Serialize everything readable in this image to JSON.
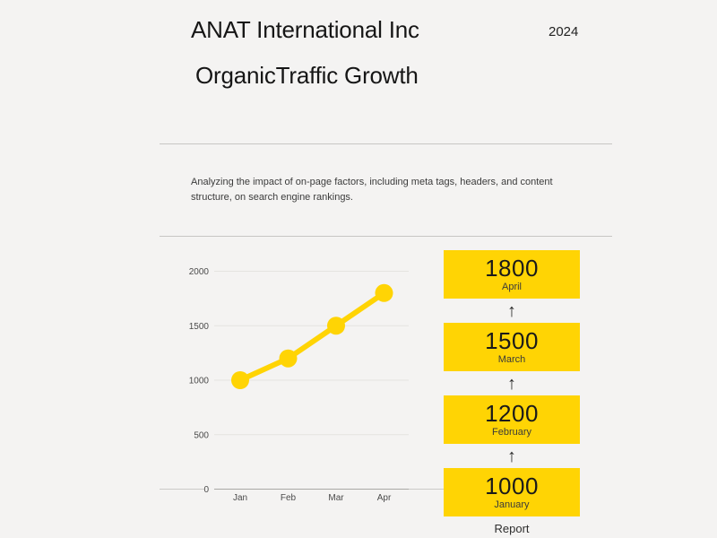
{
  "page": {
    "background": "#f4f3f2",
    "accent_yellow": "#ffd404"
  },
  "header": {
    "company": "ANAT International Inc",
    "year": "2024",
    "title": "OrganicTraffic Growth"
  },
  "description": "Analyzing the impact of on-page factors, including meta tags, headers, and content structure, on search engine rankings.",
  "chart_data": {
    "type": "line",
    "title": "",
    "categories": [
      "Jan",
      "Feb",
      "Mar",
      "Apr"
    ],
    "values": [
      1000,
      1200,
      1500,
      1800
    ],
    "xlabel": "",
    "ylabel": "",
    "ylim": [
      0,
      2000
    ],
    "yticks": [
      0,
      500,
      1000,
      1500,
      2000
    ],
    "line_color": "#ffd404",
    "marker": "circle",
    "grid": true,
    "legend_position": "none"
  },
  "timeline": {
    "arrow": "↑",
    "items": [
      {
        "value": "1800",
        "month": "April"
      },
      {
        "value": "1500",
        "month": "March"
      },
      {
        "value": "1200",
        "month": "February"
      },
      {
        "value": "1000",
        "month": "January"
      }
    ],
    "footer_label": "Report"
  }
}
